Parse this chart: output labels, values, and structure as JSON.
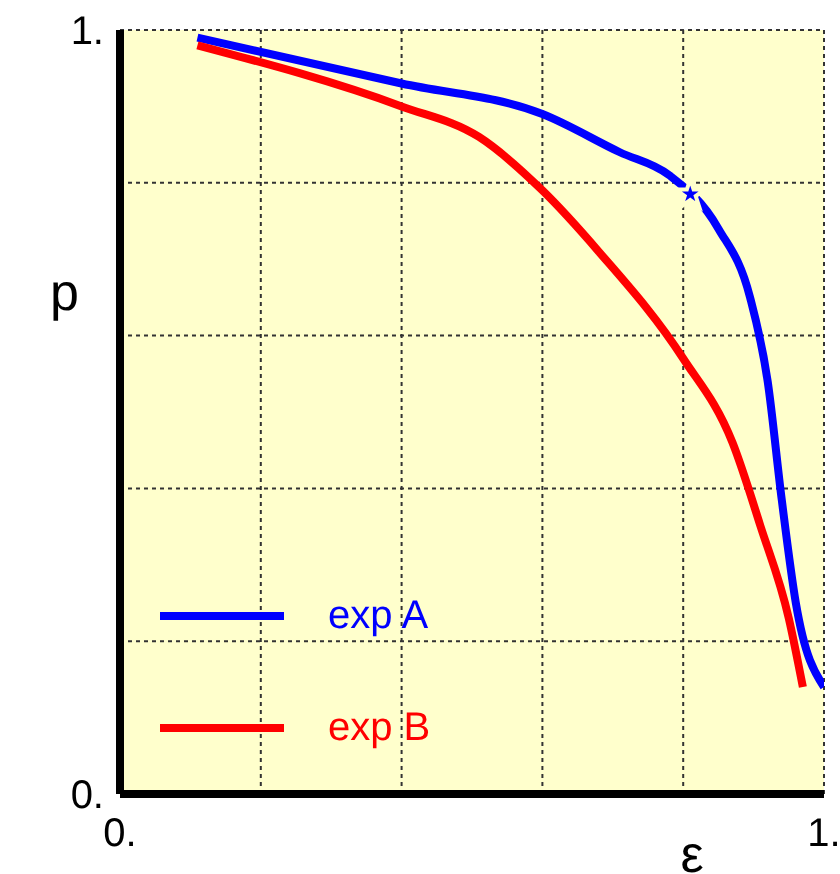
{
  "chart_data": {
    "type": "line",
    "xlabel": "ε",
    "ylabel": "p",
    "xlim": [
      0,
      1
    ],
    "ylim": [
      0,
      1
    ],
    "xticks": [
      {
        "value": 0,
        "label": "0."
      },
      {
        "value": 0.2,
        "label": null
      },
      {
        "value": 0.4,
        "label": null
      },
      {
        "value": 0.6,
        "label": null
      },
      {
        "value": 0.8,
        "label": null
      },
      {
        "value": 1,
        "label": "1."
      }
    ],
    "yticks": [
      {
        "value": 0,
        "label": "0."
      },
      {
        "value": 0.2,
        "label": null
      },
      {
        "value": 0.4,
        "label": null
      },
      {
        "value": 0.6,
        "label": null
      },
      {
        "value": 0.8,
        "label": null
      },
      {
        "value": 1,
        "label": "1."
      }
    ],
    "grid": true,
    "legend": "bottom left",
    "line_style": "solid",
    "marker": "none",
    "series": [
      {
        "name": "exp A",
        "color": "#0000ff",
        "x": [
          0.11,
          0.4,
          0.6,
          0.71,
          0.78,
          0.85,
          0.895,
          0.92,
          0.94,
          0.96,
          1.0
        ],
        "values": [
          0.99,
          0.93,
          0.89,
          0.84,
          0.81,
          0.74,
          0.65,
          0.54,
          0.385,
          0.25,
          0.14
        ]
      },
      {
        "name": "exp B",
        "color": "#ff0000",
        "x": [
          0.11,
          0.4,
          0.51,
          0.6,
          0.68,
          0.8,
          0.87,
          0.91,
          0.95,
          0.97
        ],
        "values": [
          0.98,
          0.9,
          0.86,
          0.79,
          0.71,
          0.57,
          0.46,
          0.35,
          0.23,
          0.14
        ]
      },
      {
        "type": "scatter",
        "color": "#0000ff",
        "marker": "star",
        "x": [
          0.81
        ],
        "values": [
          0.785
        ]
      }
    ]
  }
}
